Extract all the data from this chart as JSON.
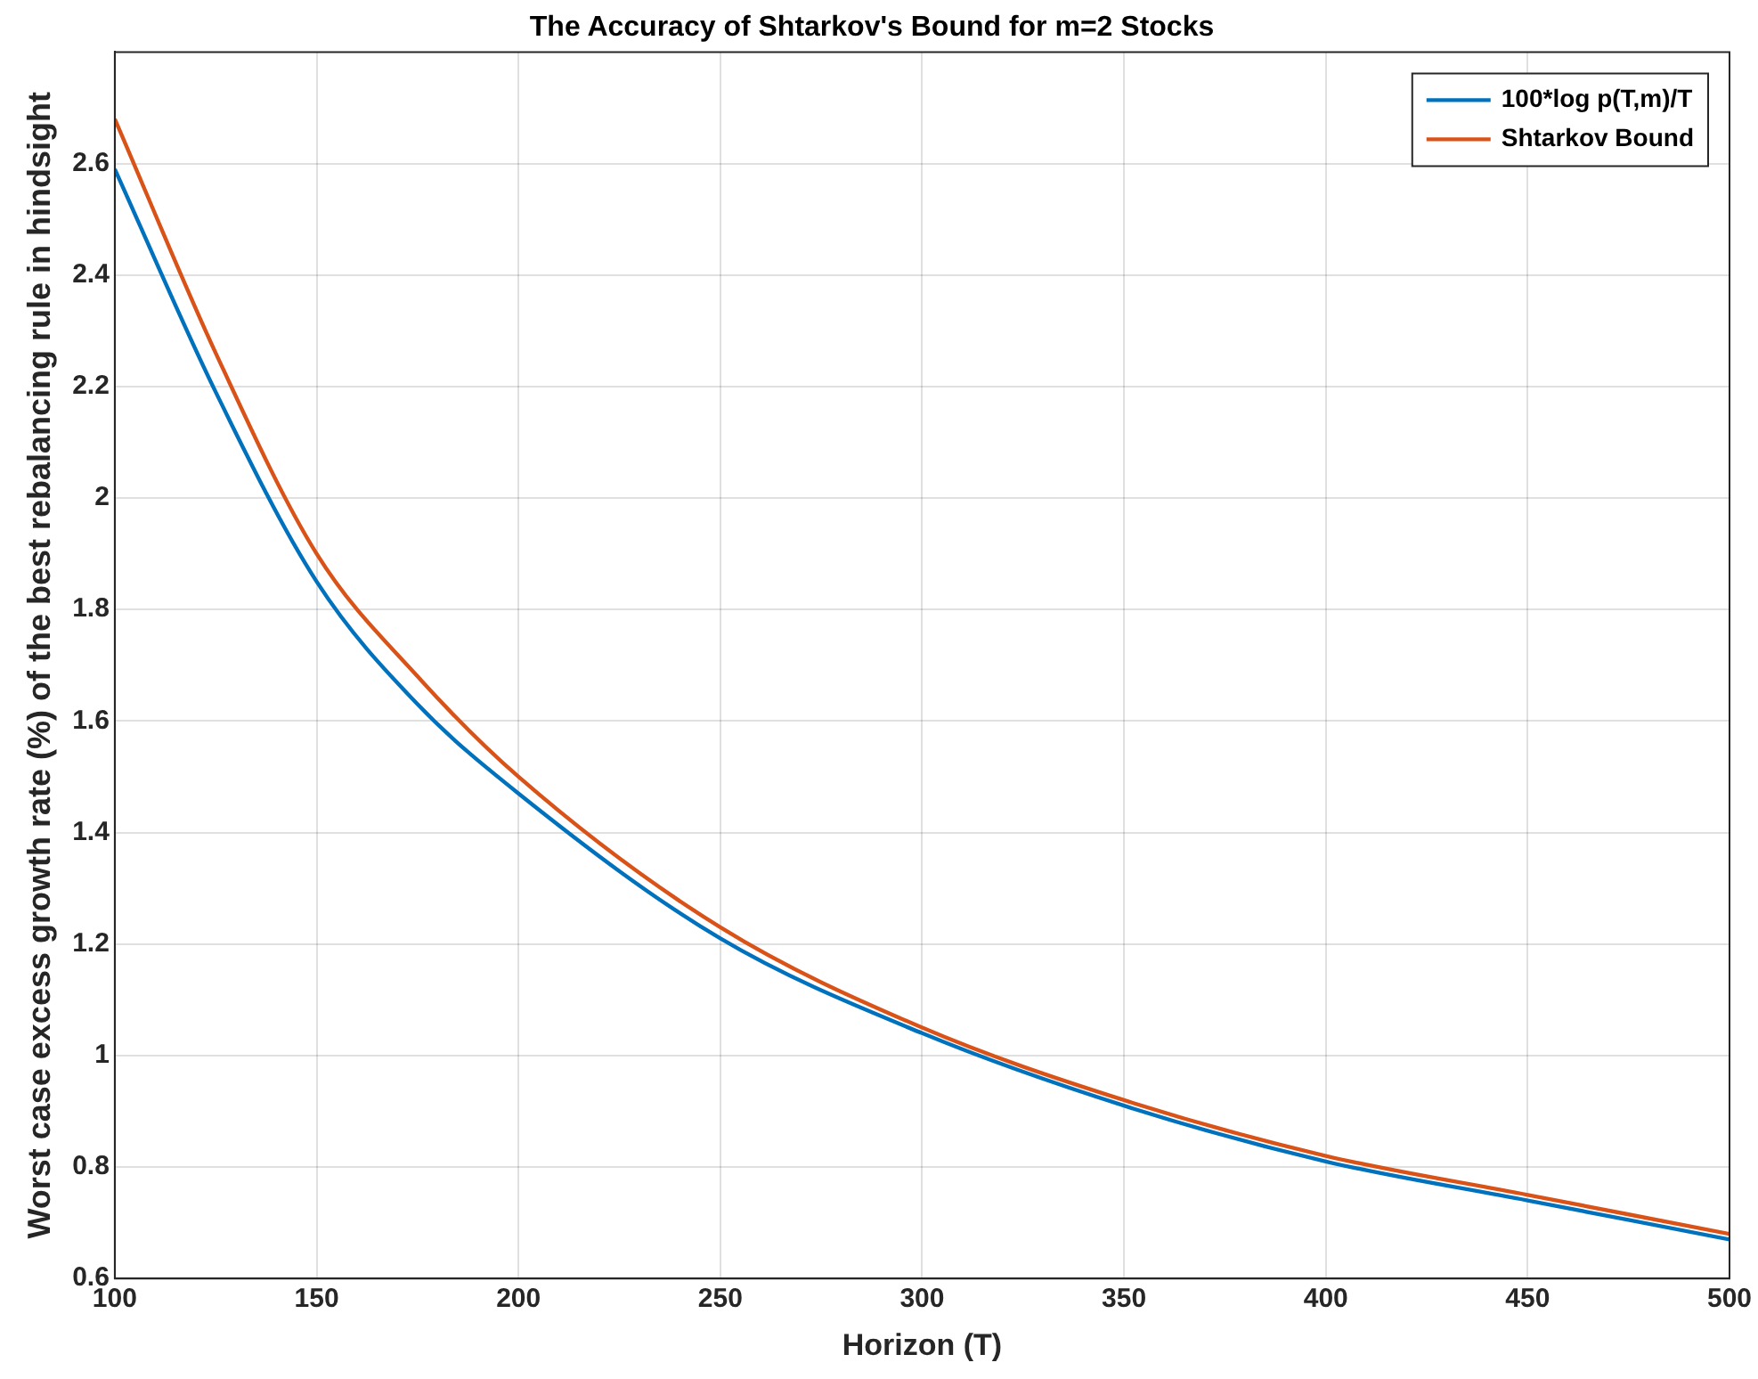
{
  "chart_data": {
    "type": "line",
    "title": "The Accuracy of Shtarkov's Bound for m=2 Stocks",
    "xlabel": "Horizon (T)",
    "ylabel": "Worst case excess growth rate (%) of the best rebalancing rule in hindsight",
    "x": [
      100,
      125,
      150,
      175,
      200,
      250,
      300,
      350,
      400,
      450,
      500
    ],
    "series": [
      {
        "name": "100*log p(T,m)/T",
        "color": "#0072bd",
        "values": [
          2.59,
          2.19,
          1.85,
          1.63,
          1.47,
          1.21,
          1.04,
          0.91,
          0.81,
          0.74,
          0.67
        ]
      },
      {
        "name": "Shtarkov Bound",
        "color": "#d95319",
        "values": [
          2.68,
          2.26,
          1.9,
          1.68,
          1.5,
          1.23,
          1.05,
          0.92,
          0.82,
          0.75,
          0.68
        ]
      }
    ],
    "xlim": [
      100,
      500
    ],
    "xticks": [
      100,
      150,
      200,
      250,
      300,
      350,
      400,
      450,
      500
    ],
    "ylim": [
      0.6,
      2.8
    ],
    "yticks": [
      0.6,
      0.8,
      1,
      1.2,
      1.4,
      1.6,
      1.8,
      2,
      2.2,
      2.4,
      2.6
    ],
    "grid": true,
    "legend": "top right",
    "marker": "none",
    "line_style": "solid"
  }
}
